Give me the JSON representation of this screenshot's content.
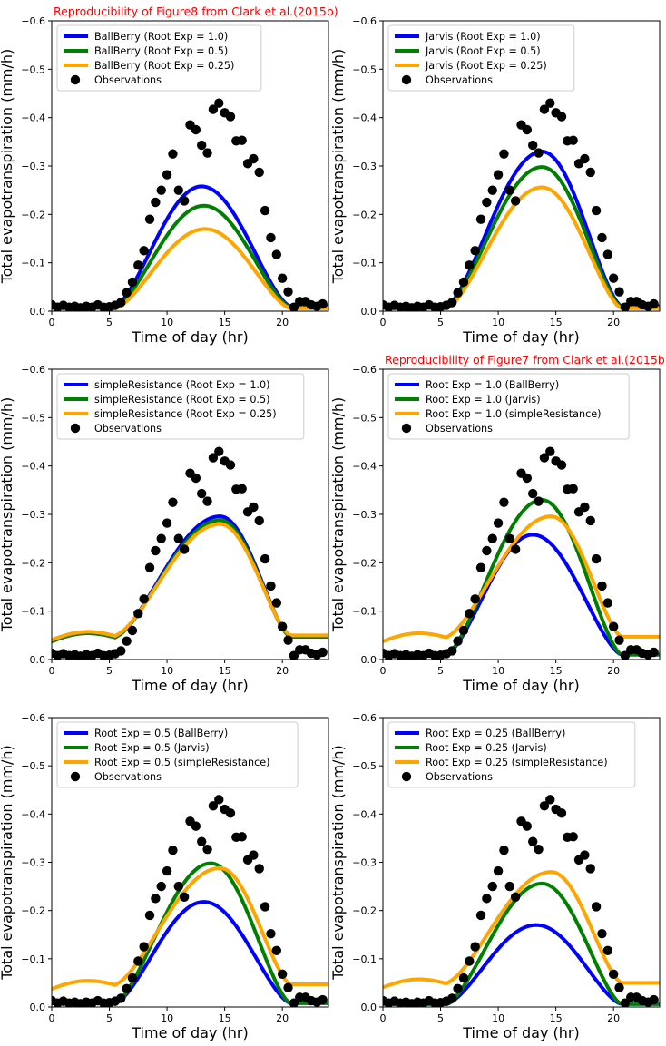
{
  "chart_data": [
    {
      "type": "line",
      "title": "Reproducibility of Figure8 from Clark et al.(2015b)",
      "title_color": "#ff0000",
      "xlabel": "Time of day (hr)",
      "ylabel": "Total evapotranspiration (mm/h)",
      "xlim": [
        0,
        24
      ],
      "ylim": [
        0,
        -0.6
      ],
      "xticks": [
        "0",
        "5",
        "10",
        "15",
        "20"
      ],
      "yticks": [
        "0.0",
        "−0.1",
        "−0.2",
        "−0.3",
        "−0.4",
        "−0.5",
        "−0.6"
      ],
      "legend": "top-left",
      "series": [
        {
          "name": "BallBerry (Root Exp = 1.0)",
          "color": "#0000ff",
          "params": {
            "start": -0.01,
            "peak": -0.258,
            "center": 13.0
          }
        },
        {
          "name": "BallBerry (Root Exp = 0.5)",
          "color": "#008000",
          "params": {
            "start": -0.008,
            "peak": -0.218,
            "center": 13.2
          }
        },
        {
          "name": "BallBerry (Root Exp = 0.25)",
          "color": "#ffa500",
          "params": {
            "start": -0.006,
            "peak": -0.17,
            "center": 13.3
          }
        }
      ],
      "observations": {
        "name": "Observations",
        "color": "#000000"
      }
    },
    {
      "type": "line",
      "title": "",
      "xlabel": "Time of day (hr)",
      "ylabel": "Total evapotranspiration (mm/h)",
      "xlim": [
        0,
        24
      ],
      "ylim": [
        0,
        -0.6
      ],
      "xticks": [
        "0",
        "5",
        "10",
        "15",
        "20"
      ],
      "yticks": [
        "0.0",
        "−0.1",
        "−0.2",
        "−0.3",
        "−0.4",
        "−0.5",
        "−0.6"
      ],
      "legend": "top-left",
      "series": [
        {
          "name": "Jarvis (Root Exp = 1.0)",
          "color": "#0000ff",
          "params": {
            "start": -0.01,
            "peak": -0.33,
            "center": 13.8
          }
        },
        {
          "name": "Jarvis (Root Exp = 0.5)",
          "color": "#008000",
          "params": {
            "start": -0.008,
            "peak": -0.298,
            "center": 13.8
          }
        },
        {
          "name": "Jarvis (Root Exp = 0.25)",
          "color": "#ffa500",
          "params": {
            "start": -0.006,
            "peak": -0.256,
            "center": 13.8
          }
        }
      ],
      "observations": {
        "name": "Observations",
        "color": "#000000"
      }
    },
    {
      "type": "line",
      "title": "",
      "xlabel": "Time of day (hr)",
      "ylabel": "Total evapotranspiration (mm/h)",
      "xlim": [
        0,
        24
      ],
      "ylim": [
        0,
        -0.6
      ],
      "xticks": [
        "0",
        "5",
        "10",
        "15",
        "20"
      ],
      "yticks": [
        "0.0",
        "−0.1",
        "−0.2",
        "−0.3",
        "−0.4",
        "−0.5",
        "−0.6"
      ],
      "legend": "top-left",
      "series": [
        {
          "name": "simpleResistance (Root Exp = 1.0)",
          "color": "#0000ff",
          "params": {
            "start": -0.047,
            "peak": -0.296,
            "center": 14.6
          }
        },
        {
          "name": "simpleResistance (Root Exp = 0.5)",
          "color": "#008000",
          "params": {
            "start": -0.047,
            "peak": -0.288,
            "center": 14.6
          }
        },
        {
          "name": "simpleResistance (Root Exp = 0.25)",
          "color": "#ffa500",
          "params": {
            "start": -0.05,
            "peak": -0.28,
            "center": 14.6
          }
        }
      ],
      "observations": {
        "name": "Observations",
        "color": "#000000"
      }
    },
    {
      "type": "line",
      "title": "Reproducibility of Figure7 from Clark et al.(2015b)",
      "title_color": "#ff0000",
      "xlabel": "Time of day (hr)",
      "ylabel": "Total evapotranspiration (mm/h)",
      "xlim": [
        0,
        24
      ],
      "ylim": [
        0,
        -0.6
      ],
      "xticks": [
        "0",
        "5",
        "10",
        "15",
        "20"
      ],
      "yticks": [
        "0.0",
        "−0.1",
        "−0.2",
        "−0.3",
        "−0.4",
        "−0.5",
        "−0.6"
      ],
      "legend": "top-left",
      "series": [
        {
          "name": "Root Exp = 1.0 (BallBerry)",
          "color": "#0000ff",
          "params": {
            "start": -0.01,
            "peak": -0.258,
            "center": 13.0
          }
        },
        {
          "name": "Root Exp = 1.0 (Jarvis)",
          "color": "#008000",
          "params": {
            "start": -0.01,
            "peak": -0.33,
            "center": 13.8
          }
        },
        {
          "name": "Root Exp = 1.0 (simpleResistance)",
          "color": "#ffa500",
          "params": {
            "start": -0.047,
            "peak": -0.296,
            "center": 14.6
          }
        }
      ],
      "observations": {
        "name": "Observations",
        "color": "#000000"
      }
    },
    {
      "type": "line",
      "title": "",
      "xlabel": "Time of day (hr)",
      "ylabel": "Total evapotranspiration (mm/h)",
      "xlim": [
        0,
        24
      ],
      "ylim": [
        0,
        -0.6
      ],
      "xticks": [
        "0",
        "5",
        "10",
        "15",
        "20"
      ],
      "yticks": [
        "0.0",
        "−0.1",
        "−0.2",
        "−0.3",
        "−0.4",
        "−0.5",
        "−0.6"
      ],
      "legend": "top-left",
      "series": [
        {
          "name": "Root Exp = 0.5 (BallBerry)",
          "color": "#0000ff",
          "params": {
            "start": -0.008,
            "peak": -0.218,
            "center": 13.2
          }
        },
        {
          "name": "Root Exp = 0.5 (Jarvis)",
          "color": "#008000",
          "params": {
            "start": -0.008,
            "peak": -0.298,
            "center": 13.8
          }
        },
        {
          "name": "Root Exp = 0.5 (simpleResistance)",
          "color": "#ffa500",
          "params": {
            "start": -0.047,
            "peak": -0.288,
            "center": 14.6
          }
        }
      ],
      "observations": {
        "name": "Observations",
        "color": "#000000"
      }
    },
    {
      "type": "line",
      "title": "",
      "xlabel": "Time of day (hr)",
      "ylabel": "Total evapotranspiration (mm/h)",
      "xlim": [
        0,
        24
      ],
      "ylim": [
        0,
        -0.6
      ],
      "xticks": [
        "0",
        "5",
        "10",
        "15",
        "20"
      ],
      "yticks": [
        "0.0",
        "−0.1",
        "−0.2",
        "−0.3",
        "−0.4",
        "−0.5",
        "−0.6"
      ],
      "legend": "top-left",
      "series": [
        {
          "name": "Root Exp = 0.25 (BallBerry)",
          "color": "#0000ff",
          "params": {
            "start": -0.006,
            "peak": -0.17,
            "center": 13.3
          }
        },
        {
          "name": "Root Exp = 0.25 (Jarvis)",
          "color": "#008000",
          "params": {
            "start": -0.006,
            "peak": -0.256,
            "center": 13.8
          }
        },
        {
          "name": "Root Exp = 0.25 (simpleResistance)",
          "color": "#ffa500",
          "params": {
            "start": -0.05,
            "peak": -0.28,
            "center": 14.6
          }
        }
      ],
      "observations": {
        "name": "Observations",
        "color": "#000000"
      }
    }
  ],
  "observations_data": {
    "x": [
      0,
      0.5,
      1,
      1.5,
      2,
      2.5,
      3,
      3.5,
      4,
      4.5,
      5,
      5.5,
      6,
      6.5,
      7,
      7.5,
      8,
      8.5,
      9,
      9.5,
      10,
      10.5,
      11,
      11.5,
      12,
      12.5,
      13,
      13.5,
      14,
      14.5,
      15,
      15.5,
      16,
      16.5,
      17,
      17.5,
      18,
      18.5,
      19,
      19.5,
      20,
      20.5,
      21,
      21.5,
      22,
      22.5,
      23,
      23.5
    ],
    "y": [
      -0.013,
      -0.008,
      -0.012,
      -0.008,
      -0.01,
      -0.007,
      -0.01,
      -0.008,
      -0.013,
      -0.008,
      -0.009,
      -0.012,
      -0.018,
      -0.038,
      -0.06,
      -0.095,
      -0.125,
      -0.19,
      -0.225,
      -0.25,
      -0.282,
      -0.325,
      -0.25,
      -0.228,
      -0.385,
      -0.375,
      -0.343,
      -0.327,
      -0.417,
      -0.43,
      -0.41,
      -0.402,
      -0.352,
      -0.353,
      -0.305,
      -0.315,
      -0.287,
      -0.208,
      -0.152,
      -0.117,
      -0.068,
      -0.04,
      -0.008,
      -0.02,
      -0.02,
      -0.013,
      -0.01,
      -0.015
    ]
  }
}
